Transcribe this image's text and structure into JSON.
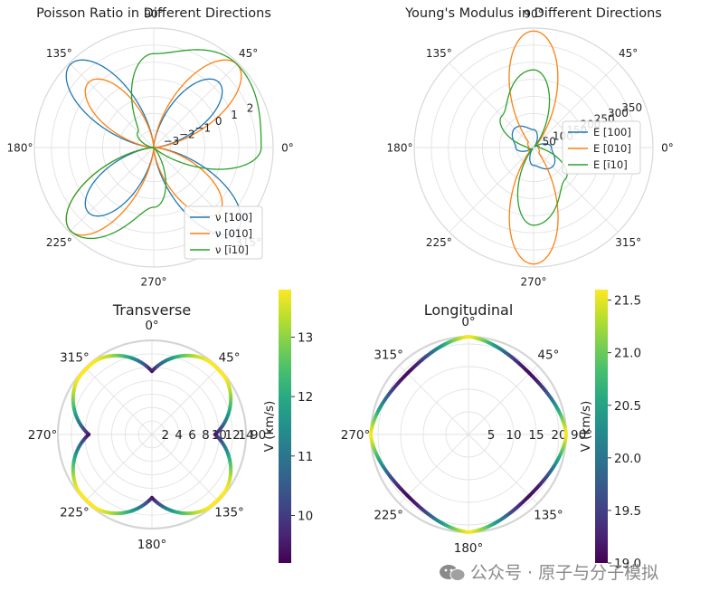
{
  "chart_data": [
    {
      "id": "poisson",
      "type": "polar-line",
      "title": "Poisson Ratio in Different Directions",
      "angle_ticks": [
        "0°",
        "45°",
        "90°",
        "135°",
        "180°",
        "225°",
        "270°",
        "315°"
      ],
      "radial_ticks": [
        "−3",
        "−2",
        "−1",
        "0",
        "1",
        "2"
      ],
      "r_range": [
        -4,
        3
      ],
      "legend": {
        "placement": "lower-right"
      },
      "series": [
        {
          "name": "ν [100]",
          "color": "#1f77b4",
          "angles": [
            0,
            45,
            90,
            135,
            180,
            225,
            270,
            315
          ],
          "values": [
            -4.0,
            1.4,
            -4.0,
            2.9,
            -4.0,
            1.4,
            -4.0,
            2.9
          ]
        },
        {
          "name": "ν [010]",
          "color": "#ff7f0e",
          "angles": [
            0,
            45,
            90,
            135,
            180,
            225,
            270,
            315
          ],
          "values": [
            -4.0,
            2.9,
            -4.0,
            1.4,
            -4.0,
            2.9,
            -4.0,
            1.4
          ]
        },
        {
          "name": "ν [ī10]",
          "color": "#2ca02c",
          "angles": [
            0,
            45,
            90,
            135,
            180,
            225,
            270,
            315
          ],
          "values": [
            2.3,
            2.9,
            1.5,
            -2.7,
            -4.0,
            2.9,
            -0.5,
            -4.0
          ]
        }
      ]
    },
    {
      "id": "young",
      "type": "polar-line",
      "title": "Young's Modulus in Different Directions",
      "angle_ticks": [
        "0°",
        "45°",
        "90°",
        "135°",
        "180°",
        "225°",
        "270°",
        "315°"
      ],
      "radial_ticks": [
        "50",
        "100",
        "150",
        "200",
        "250",
        "300",
        "350"
      ],
      "r_range": [
        0,
        400
      ],
      "legend": {
        "placement": "right"
      },
      "series": [
        {
          "name": "E [100]",
          "color": "#1f77b4",
          "angles": [
            0,
            45,
            90,
            135,
            180,
            225,
            270,
            315
          ],
          "values": [
            60,
            5,
            60,
            90,
            60,
            5,
            60,
            90
          ]
        },
        {
          "name": "E [010]",
          "color": "#ff7f0e",
          "angles": [
            0,
            45,
            90,
            135,
            180,
            225,
            270,
            315
          ],
          "values": [
            15,
            20,
            390,
            25,
            15,
            20,
            390,
            25
          ]
        },
        {
          "name": "E [ī10]",
          "color": "#2ca02c",
          "angles": [
            0,
            45,
            90,
            135,
            180,
            225,
            270,
            315
          ],
          "values": [
            20,
            5,
            260,
            150,
            20,
            5,
            260,
            150
          ]
        }
      ]
    },
    {
      "id": "transverse",
      "type": "polar-scatter",
      "title": "Transverse",
      "angle_ticks": [
        "0°",
        "45°",
        "90°",
        "135°",
        "180°",
        "225°",
        "270°",
        "315°"
      ],
      "radial_ticks": [
        "2",
        "4",
        "6",
        "8",
        "10",
        "12",
        "14"
      ],
      "r_range": [
        0,
        14
      ],
      "value_range": [
        9.2,
        13.8
      ],
      "points_per_quadrant_peak": 13.8,
      "min_value": 9.4,
      "colorbar": {
        "label": "V (km/s)",
        "ticks": [
          "10",
          "11",
          "12",
          "13"
        ],
        "range": [
          9.2,
          13.8
        ]
      }
    },
    {
      "id": "longitudinal",
      "type": "polar-scatter",
      "title": "Longitudinal",
      "angle_ticks": [
        "0°",
        "45°",
        "90°",
        "135°",
        "180°",
        "225°",
        "270°",
        "315°"
      ],
      "radial_ticks": [
        "5",
        "10",
        "15",
        "20"
      ],
      "r_range": [
        0,
        21.6
      ],
      "value_range": [
        19.0,
        21.6
      ],
      "peak_value": 21.6,
      "min_value": 19.1,
      "colorbar": {
        "label": "V (km/s)",
        "ticks": [
          "19.0",
          "19.5",
          "20.0",
          "20.5",
          "21.0",
          "21.5"
        ],
        "range": [
          19.0,
          21.6
        ]
      }
    }
  ],
  "watermark": {
    "text": "公众号 · 原子与分子模拟"
  }
}
